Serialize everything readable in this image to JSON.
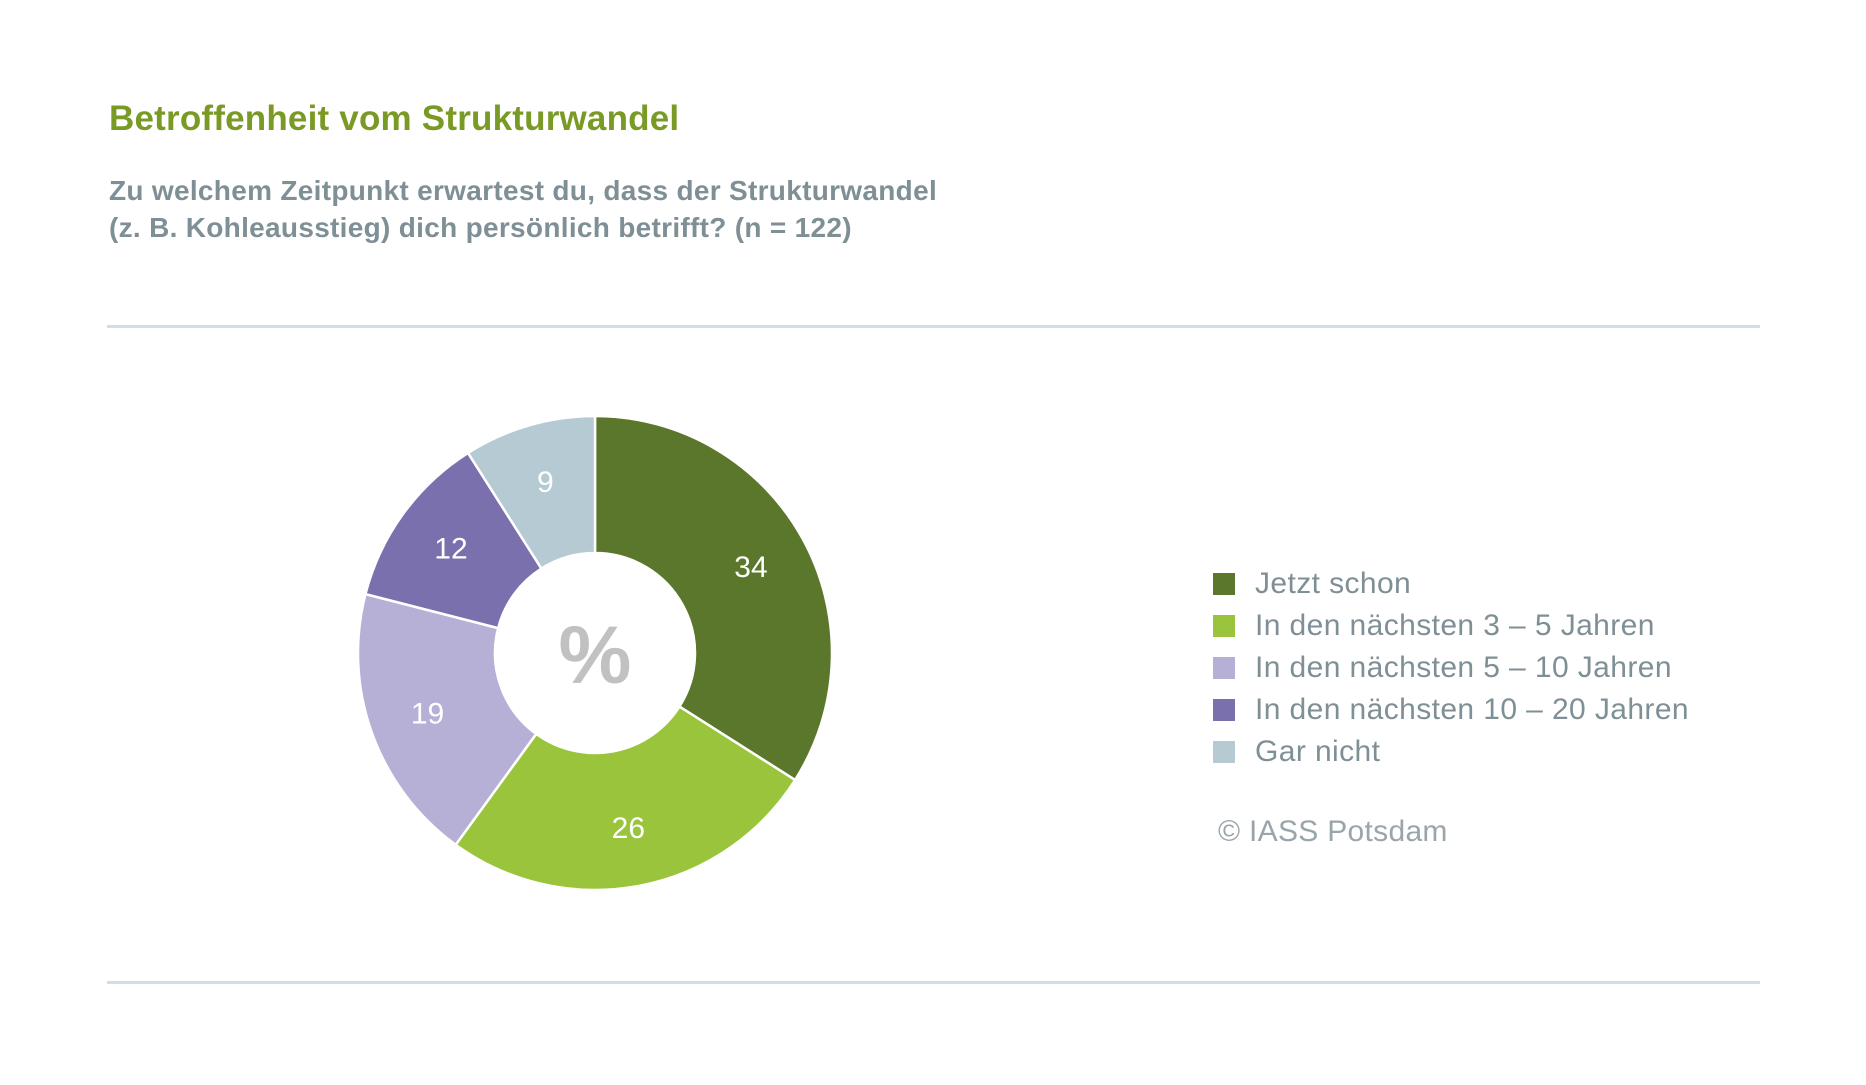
{
  "chart_data": {
    "type": "pie",
    "variant": "donut",
    "title": "Betroffenheit vom Strukturwandel",
    "subtitle_lines": [
      "Zu welchem Zeitpunkt erwartest du, dass der Strukturwandel",
      "(z. B. Kohleausstieg) dich persönlich betrifft? (n = 122)"
    ],
    "center_label": "%",
    "unit": "%",
    "direction": "clockwise from top",
    "legend_position": "right",
    "categories": [
      "Jetzt schon",
      "In den nächsten 3 – 5 Jahren",
      "In den nächsten 5 – 10 Jahren",
      "In den nächsten 10 – 20 Jahren",
      "Gar nicht"
    ],
    "values": [
      34,
      26,
      19,
      12,
      9
    ],
    "value_labels": [
      "34",
      "26",
      "19",
      "12",
      "9"
    ],
    "colors": [
      "#5b772b",
      "#99c43b",
      "#b7b0d6",
      "#7a70ae",
      "#b5cad3"
    ]
  },
  "footer": {
    "copyright": "© IASS Potsdam"
  }
}
